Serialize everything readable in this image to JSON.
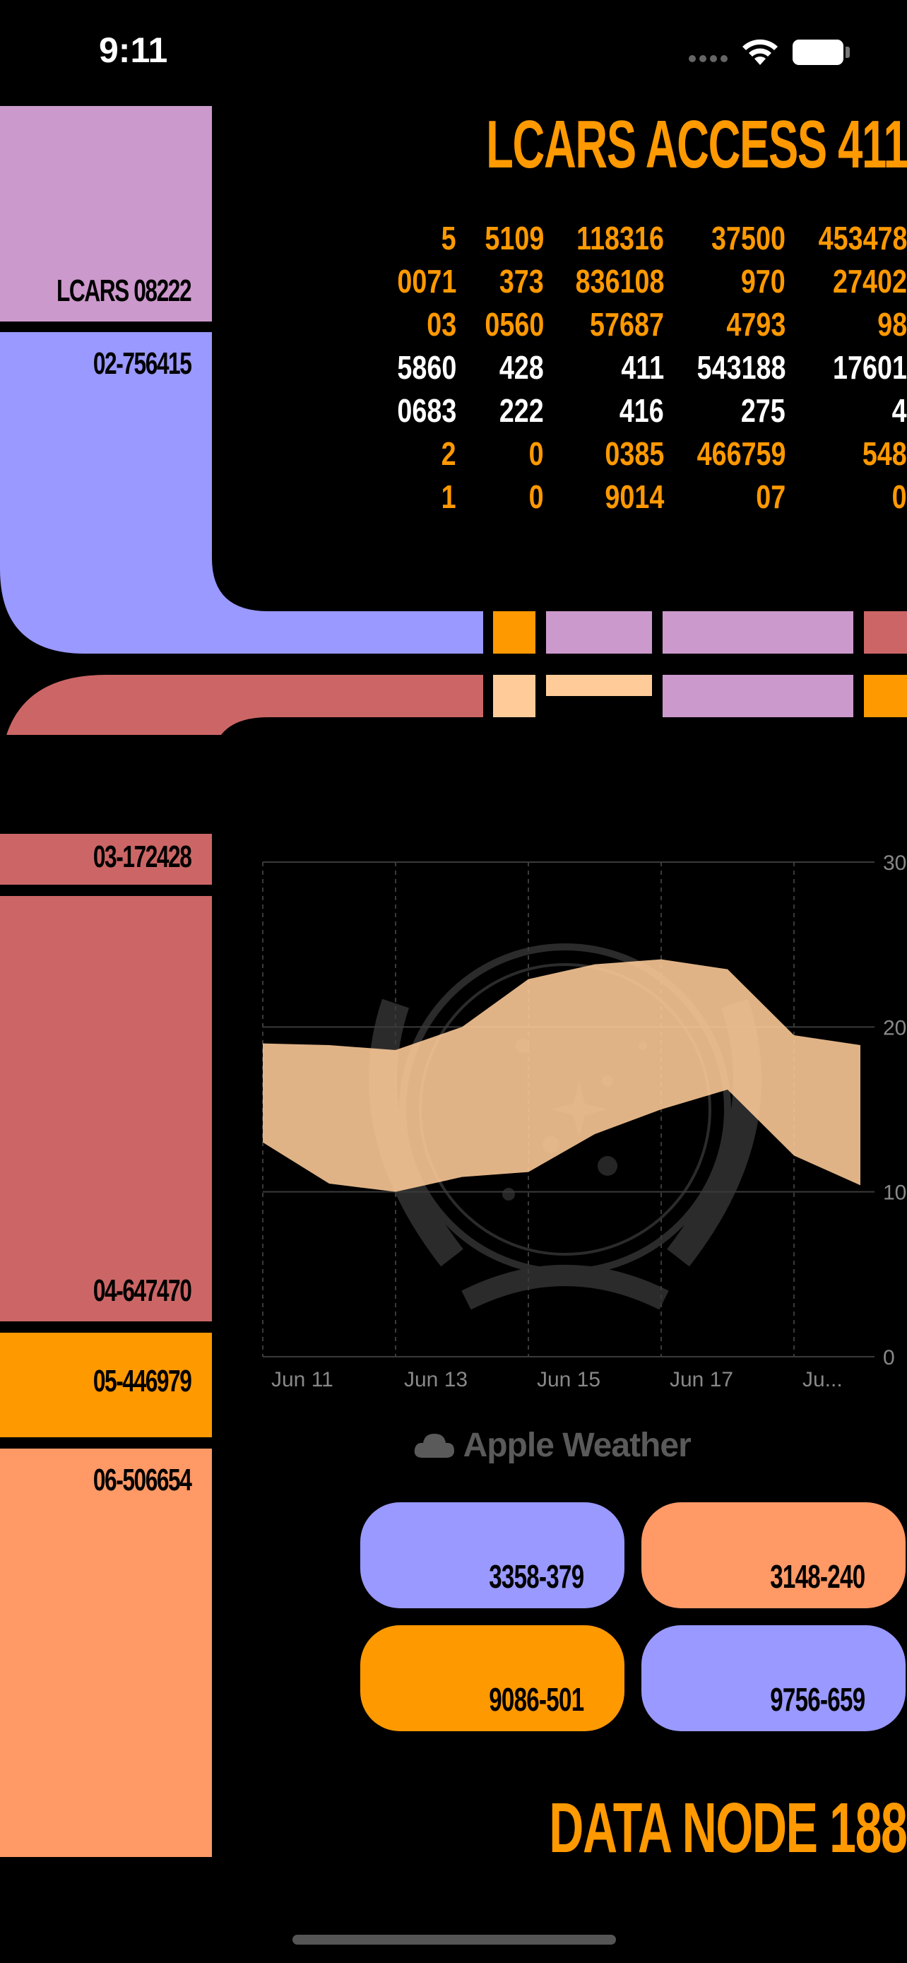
{
  "status_bar": {
    "time": "9:11",
    "icons": [
      "signal-icon",
      "wifi-icon",
      "battery-icon"
    ]
  },
  "header": {
    "title": "LCARS ACCESS 411"
  },
  "left_panels": [
    {
      "label": "LCARS 08222",
      "color": "#CC99CC"
    },
    {
      "label": "02-756415",
      "color": "#9999FF"
    },
    {
      "label": "03-172428",
      "color": "#CC6666"
    },
    {
      "label": "04-647470",
      "color": "#CC6666"
    },
    {
      "label": "05-446979",
      "color": "#FF9900"
    },
    {
      "label": "06-506654",
      "color": "#FF9966"
    }
  ],
  "data_table": {
    "rows": [
      {
        "values": [
          "5",
          "5109",
          "118316",
          "37500",
          "453478"
        ],
        "color": "#FF9900"
      },
      {
        "values": [
          "0071",
          "373",
          "836108",
          "970",
          "27402"
        ],
        "color": "#FF9900"
      },
      {
        "values": [
          "03",
          "0560",
          "57687",
          "4793",
          "98"
        ],
        "color": "#FF9900"
      },
      {
        "values": [
          "5860",
          "428",
          "411",
          "543188",
          "17601"
        ],
        "color": "#FFFFFF"
      },
      {
        "values": [
          "0683",
          "222",
          "416",
          "275",
          "4"
        ],
        "color": "#FFFFFF"
      },
      {
        "values": [
          "2",
          "0",
          "0385",
          "466759",
          "548"
        ],
        "color": "#FF9900"
      },
      {
        "values": [
          "1",
          "0",
          "9014",
          "07",
          "0"
        ],
        "color": "#FF9900"
      }
    ]
  },
  "chart_data": {
    "type": "area",
    "x_labels": [
      "Jun 11",
      "Jun 13",
      "Jun 15",
      "Jun 17",
      "Ju..."
    ],
    "x": [
      "Jun 11",
      "Jun 12",
      "Jun 13",
      "Jun 14",
      "Jun 15",
      "Jun 16",
      "Jun 17",
      "Jun 18",
      "Jun 19",
      "Jun 20"
    ],
    "high": [
      19.0,
      18.9,
      18.6,
      20.0,
      22.9,
      23.8,
      24.1,
      23.5,
      19.5,
      18.9
    ],
    "low": [
      13.0,
      10.5,
      10.0,
      10.9,
      11.2,
      13.5,
      15.0,
      16.2,
      12.2,
      10.4
    ],
    "ylim": [
      0,
      30
    ],
    "y_ticks": [
      "0",
      "10",
      "20",
      "30"
    ],
    "grid": true,
    "fill_color": "#FFCC99"
  },
  "attribution": {
    "text": "Apple Weather"
  },
  "buttons": [
    {
      "label": "3358-379",
      "color": "#9999FF"
    },
    {
      "label": "3148-240",
      "color": "#FF9966"
    },
    {
      "label": "9086-501",
      "color": "#FF9900"
    },
    {
      "label": "9756-659",
      "color": "#9999FF"
    }
  ],
  "footer": {
    "title": "DATA NODE 188"
  },
  "elbow_bars": {
    "top": [
      "#FF9900",
      "#CC99CC",
      "#CC99CC",
      "#CC6666"
    ],
    "bottom": [
      "#FFCC99",
      "#FFCC99",
      "#CC99CC",
      "#FF9900"
    ]
  }
}
